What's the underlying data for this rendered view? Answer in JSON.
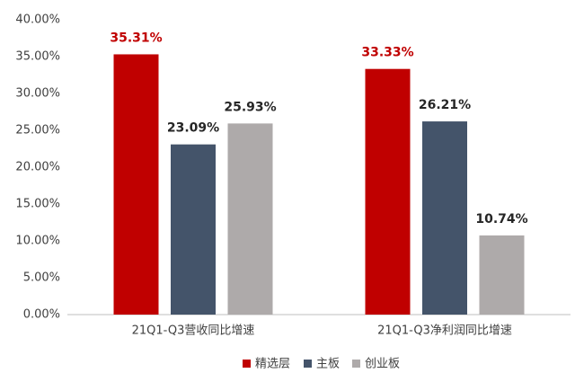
{
  "chart_data": {
    "type": "bar",
    "categories": [
      "21Q1-Q3营收同比增速",
      "21Q1-Q3净利润同比增速"
    ],
    "series": [
      {
        "name": "精选层",
        "color": "#c00000",
        "label_color": "#c00000",
        "values": [
          35.31,
          33.33
        ],
        "value_labels": [
          "35.31%",
          "33.33%"
        ]
      },
      {
        "name": "主板",
        "color": "#44546a",
        "label_color": "#262626",
        "values": [
          23.09,
          26.21
        ],
        "value_labels": [
          "23.09%",
          "26.21%"
        ]
      },
      {
        "name": "创业板",
        "color": "#aeaaaa",
        "label_color": "#262626",
        "values": [
          25.93,
          10.74
        ],
        "value_labels": [
          "25.93%",
          "10.74%"
        ]
      }
    ],
    "ylim": [
      0,
      40
    ],
    "yticks": [
      {
        "value": 0,
        "label": "0.00%"
      },
      {
        "value": 5,
        "label": "5.00%"
      },
      {
        "value": 10,
        "label": "10.00%"
      },
      {
        "value": 15,
        "label": "15.00%"
      },
      {
        "value": 20,
        "label": "20.00%"
      },
      {
        "value": 25,
        "label": "25.00%"
      },
      {
        "value": 30,
        "label": "30.00%"
      },
      {
        "value": 35,
        "label": "35.00%"
      },
      {
        "value": 40,
        "label": "40.00%"
      }
    ],
    "grid": false,
    "legend": "bottom"
  }
}
